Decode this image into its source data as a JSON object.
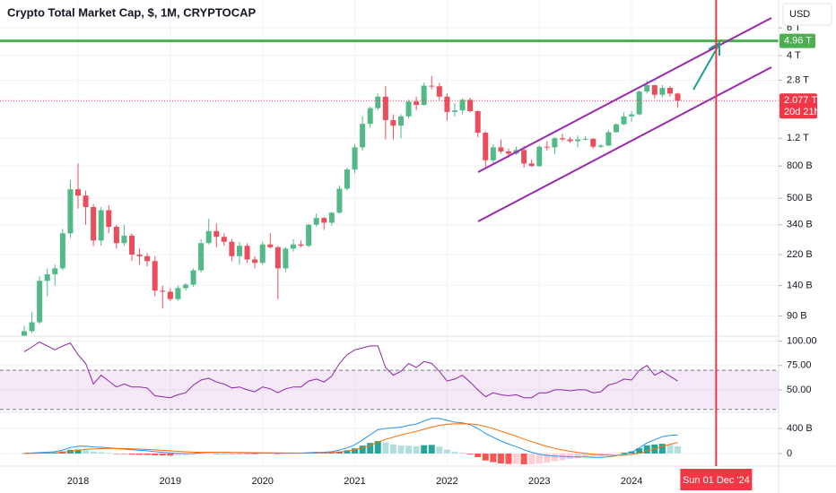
{
  "chart_data": [
    {
      "type": "candlestick",
      "title": "Crypto Total Market Cap, $, 1M, CRYPTOCAP",
      "currency": "USD",
      "x": [
        "2017-06",
        "2017-07",
        "2017-08",
        "2017-09",
        "2017-10",
        "2017-11",
        "2017-12",
        "2018-01",
        "2018-02",
        "2018-03",
        "2018-04",
        "2018-05",
        "2018-06",
        "2018-07",
        "2018-08",
        "2018-09",
        "2018-10",
        "2018-11",
        "2018-12",
        "2019-01",
        "2019-02",
        "2019-03",
        "2019-04",
        "2019-05",
        "2019-06",
        "2019-07",
        "2019-08",
        "2019-09",
        "2019-10",
        "2019-11",
        "2019-12",
        "2020-01",
        "2020-02",
        "2020-03",
        "2020-04",
        "2020-05",
        "2020-06",
        "2020-07",
        "2020-08",
        "2020-09",
        "2020-10",
        "2020-11",
        "2020-12",
        "2021-01",
        "2021-02",
        "2021-03",
        "2021-04",
        "2021-05",
        "2021-06",
        "2021-07",
        "2021-08",
        "2021-09",
        "2021-10",
        "2021-11",
        "2021-12",
        "2022-01",
        "2022-02",
        "2022-03",
        "2022-04",
        "2022-05",
        "2022-06",
        "2022-07",
        "2022-08",
        "2022-09",
        "2022-10",
        "2022-11",
        "2022-12",
        "2023-01",
        "2023-02",
        "2023-03",
        "2023-04",
        "2023-05",
        "2023-06",
        "2023-07",
        "2023-08",
        "2023-09",
        "2023-10",
        "2023-11",
        "2023-12",
        "2024-01",
        "2024-02",
        "2024-03",
        "2024-04",
        "2024-05",
        "2024-06",
        "2024-07"
      ],
      "open": [
        62,
        72,
        82,
        150,
        165,
        180,
        300,
        570,
        520,
        440,
        270,
        420,
        330,
        260,
        290,
        220,
        215,
        200,
        130,
        128,
        115,
        135,
        142,
        175,
        260,
        310,
        285,
        265,
        215,
        250,
        205,
        195,
        255,
        245,
        180,
        240,
        255,
        250,
        340,
        375,
        350,
        405,
        575,
        760,
        1050,
        1480,
        1860,
        2200,
        1560,
        1440,
        1650,
        2050,
        1950,
        2580,
        2560,
        2200,
        1760,
        1800,
        2100,
        1780,
        1300,
        870,
        1050,
        990,
        960,
        1010,
        830,
        800,
        1060,
        1050,
        1200,
        1180,
        1150,
        1180,
        1190,
        1060,
        1080,
        1310,
        1470,
        1650,
        1700,
        2370,
        2600,
        2260,
        2500,
        2300
      ],
      "high": [
        78,
        95,
        160,
        180,
        190,
        320,
        650,
        830,
        560,
        460,
        440,
        450,
        340,
        340,
        300,
        240,
        225,
        215,
        140,
        135,
        140,
        145,
        180,
        275,
        370,
        345,
        300,
        275,
        265,
        260,
        215,
        265,
        300,
        250,
        245,
        275,
        270,
        345,
        400,
        380,
        410,
        600,
        780,
        1100,
        1650,
        1900,
        2300,
        2560,
        1700,
        1700,
        2100,
        2200,
        2700,
        2970,
        2680,
        2300,
        2000,
        2150,
        2170,
        1800,
        1330,
        1100,
        1180,
        1030,
        1060,
        1070,
        880,
        1080,
        1150,
        1220,
        1280,
        1220,
        1250,
        1240,
        1200,
        1100,
        1350,
        1490,
        1750,
        1780,
        2400,
        2780,
        2620,
        2600,
        2570,
        2330
      ],
      "low": [
        60,
        70,
        80,
        120,
        140,
        175,
        280,
        430,
        340,
        250,
        250,
        300,
        240,
        250,
        200,
        190,
        185,
        120,
        100,
        112,
        112,
        130,
        138,
        170,
        255,
        245,
        250,
        200,
        190,
        195,
        180,
        190,
        240,
        115,
        170,
        230,
        245,
        245,
        330,
        315,
        335,
        400,
        560,
        720,
        1000,
        1400,
        1800,
        1180,
        1180,
        1200,
        1600,
        1800,
        1930,
        2450,
        2100,
        1550,
        1650,
        1700,
        1750,
        1220,
        790,
        840,
        960,
        900,
        940,
        780,
        790,
        790,
        1000,
        950,
        1150,
        1120,
        1050,
        1160,
        1030,
        1040,
        1070,
        1300,
        1450,
        1530,
        1680,
        2300,
        2150,
        2180,
        2200,
        1870
      ],
      "close": [
        72,
        82,
        150,
        165,
        180,
        300,
        570,
        520,
        440,
        270,
        420,
        330,
        260,
        290,
        220,
        215,
        200,
        130,
        128,
        115,
        135,
        142,
        175,
        260,
        310,
        285,
        265,
        215,
        250,
        205,
        195,
        255,
        245,
        180,
        240,
        255,
        250,
        340,
        375,
        350,
        405,
        575,
        760,
        1050,
        1480,
        1860,
        2200,
        1560,
        1440,
        1650,
        2050,
        1950,
        2580,
        2560,
        2200,
        1760,
        1800,
        2100,
        1780,
        1300,
        870,
        1050,
        990,
        960,
        1010,
        830,
        800,
        1060,
        1050,
        1200,
        1180,
        1150,
        1180,
        1190,
        1060,
        1080,
        1310,
        1470,
        1650,
        1700,
        2370,
        2600,
        2260,
        2500,
        2300,
        2077
      ],
      "up_color": "#53b987",
      "down_color": "#eb4d5c",
      "log_scale": true,
      "grid": true,
      "grid_color": "#f0f3fa",
      "ylim": [
        67,
        9000
      ],
      "yticks": [
        {
          "value": 6000,
          "label": "6 T"
        },
        {
          "value": 4000,
          "label": "4 T"
        },
        {
          "value": 2800,
          "label": "2.8 T"
        },
        {
          "value": 1200,
          "label": "1.2 T"
        },
        {
          "value": 800,
          "label": "800 B"
        },
        {
          "value": 500,
          "label": "500 B"
        },
        {
          "value": 340,
          "label": "340 B"
        },
        {
          "value": 220,
          "label": "220 B"
        },
        {
          "value": 140,
          "label": "140 B"
        },
        {
          "value": 90,
          "label": "90 B"
        }
      ],
      "xticks": [
        {
          "value": "2018-01",
          "label": "2018"
        },
        {
          "value": "2019-01",
          "label": "2019"
        },
        {
          "value": "2020-01",
          "label": "2020"
        },
        {
          "value": "2021-01",
          "label": "2021"
        },
        {
          "value": "2022-01",
          "label": "2022"
        },
        {
          "value": "2023-01",
          "label": "2023"
        },
        {
          "value": "2024-01",
          "label": "2024"
        }
      ],
      "levels": [
        {
          "value": 4960,
          "label": "4.96 T",
          "color": "#4caf50"
        }
      ],
      "last_price": {
        "value": 2077,
        "label": "2.077 T",
        "color": "#f23645"
      },
      "countdown": "20d 21h",
      "marker": {
        "value": "2024-12-01",
        "label": "Sun 01 Dec '24",
        "color": "#f23645"
      }
    },
    {
      "type": "line",
      "color": "#8e24aa",
      "values": [
        89,
        94,
        99,
        95,
        91,
        95,
        98,
        86,
        77,
        56,
        65,
        59,
        53,
        56,
        53,
        53,
        52,
        44,
        43,
        42,
        45,
        47,
        55,
        60,
        62,
        58,
        56,
        52,
        53,
        50,
        48,
        53,
        51,
        47,
        51,
        53,
        53,
        59,
        61,
        58,
        64,
        77,
        86,
        91,
        93,
        95,
        95,
        73,
        65,
        69,
        77,
        73,
        79,
        77,
        69,
        59,
        61,
        65,
        58,
        50,
        43,
        47,
        45,
        44,
        45,
        42,
        42,
        47,
        47,
        50,
        50,
        49,
        50,
        50,
        47,
        48,
        55,
        57,
        61,
        60,
        70,
        75,
        65,
        69,
        64,
        59
      ],
      "ylim": [
        27,
        105
      ],
      "yticks": [
        {
          "value": 100,
          "label": "100.00"
        },
        {
          "value": 75,
          "label": "75.00"
        },
        {
          "value": 50,
          "label": "50.00"
        }
      ],
      "band": [
        30,
        70
      ],
      "band_color": "rgba(156,39,176,0.1)"
    },
    {
      "type": "macd",
      "macd_color": "#2196f3",
      "signal_color": "#ff6d00",
      "histogram_colors": [
        "#26a69a",
        "#b2dfdb",
        "#ff5252",
        "#ffcdd2"
      ],
      "macd": [
        5,
        8,
        15,
        22,
        30,
        55,
        95,
        115,
        118,
        105,
        100,
        92,
        80,
        72,
        60,
        52,
        44,
        30,
        20,
        10,
        4,
        0,
        2,
        10,
        18,
        20,
        20,
        16,
        14,
        10,
        6,
        8,
        8,
        4,
        5,
        6,
        7,
        14,
        20,
        22,
        30,
        55,
        90,
        140,
        215,
        300,
        380,
        400,
        410,
        420,
        450,
        470,
        520,
        560,
        560,
        530,
        500,
        490,
        460,
        400,
        320,
        260,
        200,
        150,
        110,
        60,
        20,
        -10,
        -30,
        -40,
        -45,
        -52,
        -55,
        -55,
        -60,
        -60,
        -50,
        -35,
        -10,
        20,
        90,
        170,
        220,
        270,
        290,
        295
      ],
      "signal": [
        2,
        3,
        5,
        8,
        12,
        21,
        36,
        52,
        65,
        73,
        79,
        82,
        82,
        80,
        76,
        71,
        66,
        59,
        51,
        43,
        35,
        28,
        23,
        20,
        20,
        20,
        20,
        19,
        18,
        16,
        14,
        13,
        12,
        10,
        9,
        8,
        8,
        9,
        11,
        13,
        16,
        24,
        37,
        58,
        89,
        131,
        181,
        225,
        262,
        294,
        325,
        354,
        387,
        422,
        450,
        466,
        473,
        476,
        473,
        458,
        431,
        397,
        357,
        316,
        275,
        232,
        190,
        150,
        114,
        83,
        57,
        35,
        17,
        3,
        -10,
        -20,
        -26,
        -28,
        -24,
        -15,
        6,
        39,
        75,
        114,
        149,
        178
      ],
      "histogram": [
        3,
        5,
        10,
        14,
        18,
        34,
        59,
        63,
        53,
        32,
        21,
        10,
        -2,
        -8,
        -16,
        -19,
        -22,
        -29,
        -31,
        -33,
        -31,
        -28,
        -21,
        -10,
        -2,
        0,
        0,
        -3,
        -4,
        -6,
        -8,
        -5,
        -4,
        -6,
        -4,
        -2,
        -1,
        5,
        9,
        9,
        14,
        31,
        53,
        82,
        126,
        169,
        199,
        175,
        148,
        126,
        125,
        116,
        133,
        138,
        110,
        64,
        27,
        14,
        -13,
        -58,
        -111,
        -137,
        -157,
        -166,
        -165,
        -172,
        -170,
        -160,
        -144,
        -123,
        -102,
        -87,
        -72,
        -58,
        -50,
        -40,
        -24,
        -7,
        14,
        35,
        84,
        131,
        145,
        156,
        141,
        117
      ],
      "ylim": [
        -200,
        657
      ],
      "yticks": [
        {
          "value": 400,
          "label": "400 B"
        },
        0
      ]
    }
  ]
}
